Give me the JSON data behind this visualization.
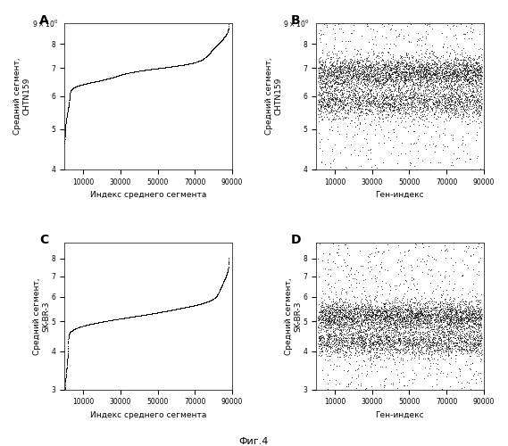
{
  "figure_title": "Фиг.4",
  "panels": [
    "A",
    "B",
    "C",
    "D"
  ],
  "panel_A": {
    "xlabel": "Индекс среднего сегмента",
    "ylabel": "Средний сегмент,\nCHTN159",
    "ylim_log": [
      0.55,
      0.72
    ],
    "xlim": [
      0,
      90000
    ],
    "xticks": [
      10000,
      30000,
      50000,
      70000,
      90000
    ],
    "n_points": 88000,
    "seed_A": 42
  },
  "panel_B": {
    "xlabel": "Ген-индекс",
    "ylabel": "Средний сегмент,\nCHTN159",
    "ylim_log": [
      0.55,
      0.72
    ],
    "xlim": [
      0,
      90000
    ],
    "xticks": [
      10000,
      30000,
      50000,
      70000,
      90000
    ],
    "seed_B": 43
  },
  "panel_C": {
    "xlabel": "Индекс среднего сегмента",
    "ylabel": "Средний сегмент,\nSK-BR-3",
    "ylim_log": [
      0.45,
      0.78
    ],
    "xlim": [
      0,
      90000
    ],
    "xticks": [
      10000,
      30000,
      50000,
      70000,
      90000
    ],
    "n_points": 88000,
    "seed_C": 44
  },
  "panel_D": {
    "xlabel": "Ген-индекс",
    "ylabel": "Средний сегмент,\nSK-BR-3",
    "ylim_log": [
      0.45,
      0.78
    ],
    "xlim": [
      0,
      90000
    ],
    "xticks": [
      10000,
      30000,
      50000,
      70000,
      90000
    ],
    "seed_D": 45
  },
  "dot_color": "#000000",
  "bg_color": "#ffffff",
  "fontsize_label": 6.5,
  "fontsize_tick": 5.5,
  "fontsize_panel": 10,
  "fontsize_title": 8
}
